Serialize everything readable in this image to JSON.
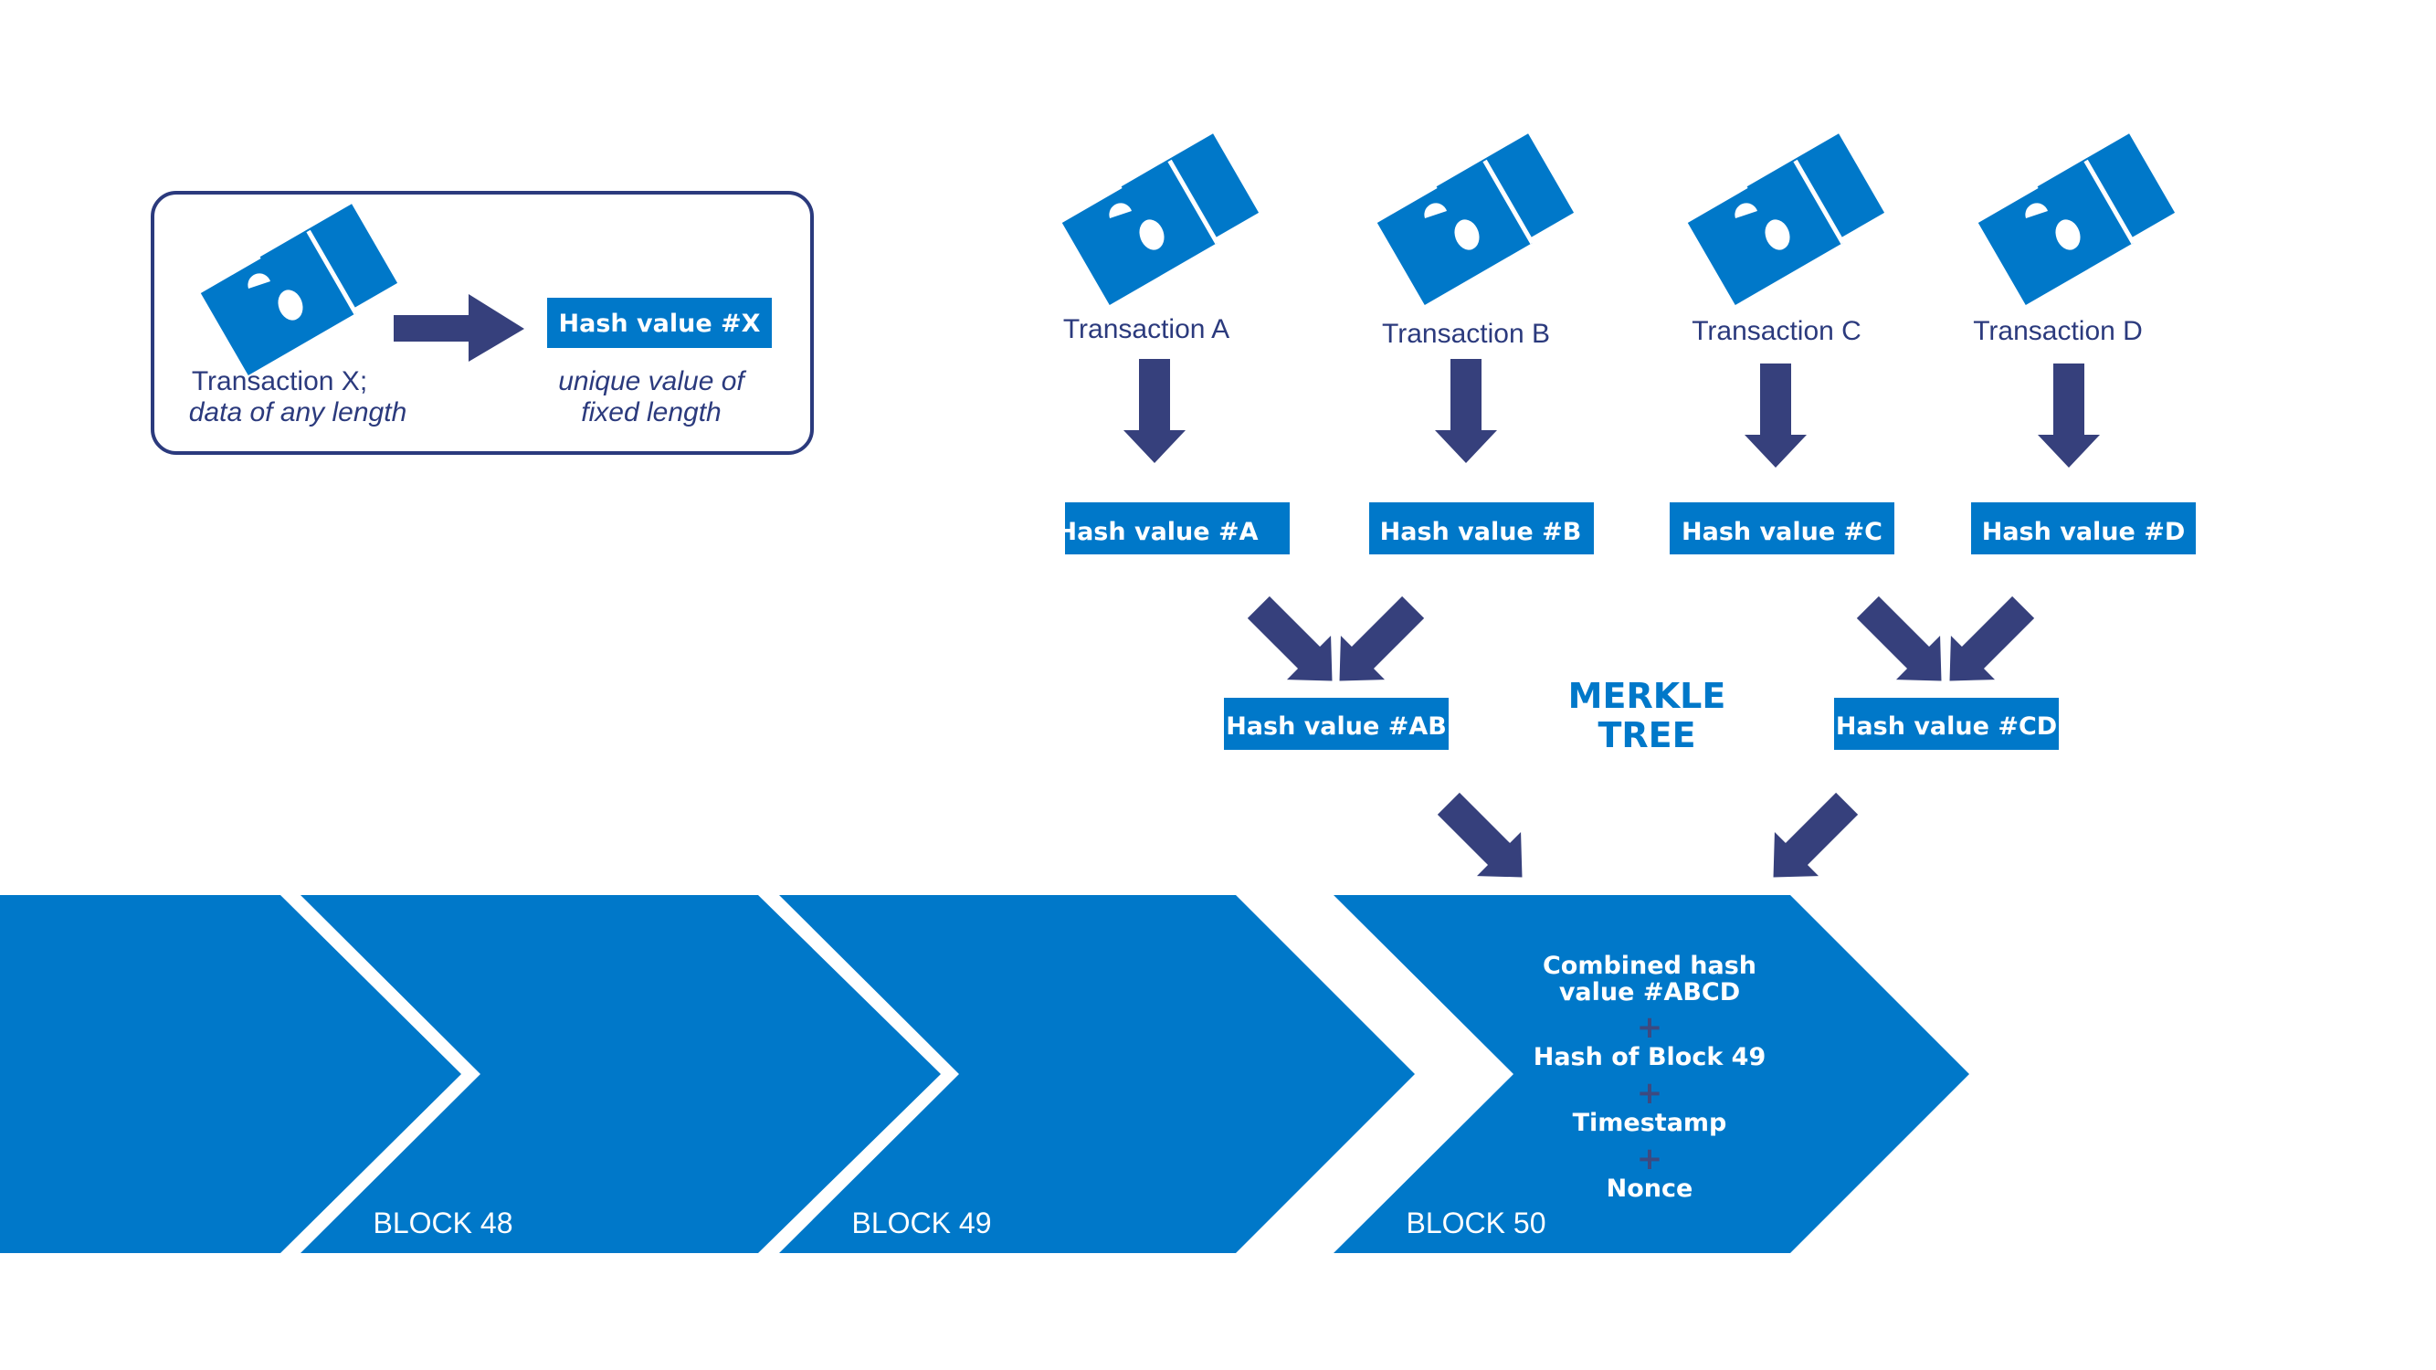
{
  "colors": {
    "brand_blue": "#0078c9",
    "arrow_navy": "#36407c",
    "text_navy": "#2b3a7d",
    "plus_navy": "#3d4a80",
    "white": "#ffffff"
  },
  "legend": {
    "transaction_label_line1": "Transaction X;",
    "transaction_label_line2": "data of any length",
    "hash_box": "Hash value #X",
    "hash_caption_line1": "unique value of",
    "hash_caption_line2": "fixed length",
    "transaction_icon": "ticket-icon",
    "arrow_icon": "arrow-right-icon"
  },
  "transactions": [
    {
      "label": "Transaction A",
      "hash": "Hash value #A"
    },
    {
      "label": "Transaction B",
      "hash": "Hash value #B"
    },
    {
      "label": "Transaction C",
      "hash": "Hash value #C"
    },
    {
      "label": "Transaction D",
      "hash": "Hash value #D"
    }
  ],
  "combined": {
    "ab": "Hash value #AB",
    "cd": "Hash value #CD"
  },
  "merkle_title": {
    "line1": "MERKLE",
    "line2": "TREE"
  },
  "blocks": [
    {
      "label": "BLOCK 48"
    },
    {
      "label": "BLOCK 49"
    },
    {
      "label": "BLOCK 50"
    }
  ],
  "block50_contents": {
    "combined_line1": "Combined hash",
    "combined_line2": "value #ABCD",
    "plus": "+",
    "prev_hash": "Hash of Block 49",
    "timestamp": "Timestamp",
    "nonce": "Nonce"
  }
}
